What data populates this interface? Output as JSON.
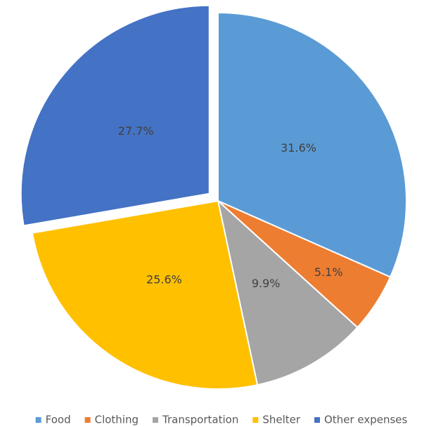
{
  "chart_data": {
    "type": "pie",
    "categories": [
      "Food",
      "Clothing",
      "Transportation",
      "Shelter",
      "Other expenses"
    ],
    "values": [
      31.6,
      5.1,
      9.9,
      25.6,
      27.7
    ],
    "value_labels": [
      "31.6%",
      "5.1%",
      "9.9%",
      "25.6%",
      "27.7%"
    ],
    "colors": [
      "#5b9bd5",
      "#ed7d31",
      "#a5a5a5",
      "#ffc000",
      "#4472c4"
    ],
    "exploded": "Other expenses",
    "legend": "bottom"
  }
}
